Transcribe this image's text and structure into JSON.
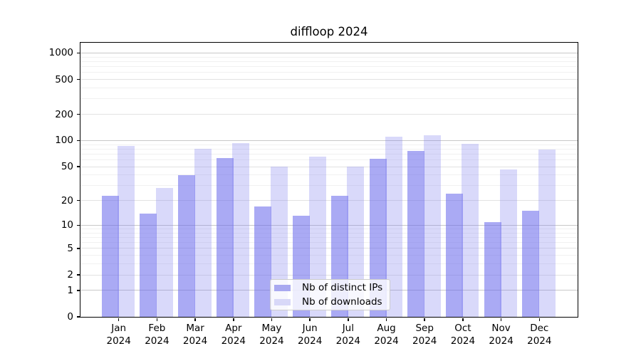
{
  "title": "diffloop 2024",
  "chart_data": {
    "type": "bar",
    "title": "diffloop 2024",
    "xlabel": "",
    "ylabel": "",
    "yscale": "log1p",
    "ylim": [
      0,
      1309
    ],
    "grid": true,
    "legend_position": "lower center",
    "categories": [
      "Jan 2024",
      "Feb 2024",
      "Mar 2024",
      "Apr 2024",
      "May 2024",
      "Jun 2024",
      "Jul 2024",
      "Aug 2024",
      "Sep 2024",
      "Oct 2024",
      "Nov 2024",
      "Dec 2024"
    ],
    "y_ticks": [
      1000,
      500,
      200,
      100,
      50,
      20,
      10,
      5,
      2,
      1,
      0
    ],
    "y_gridlines": {
      "major": [
        1,
        10,
        100,
        1000
      ],
      "mid": [
        2,
        5,
        20,
        50,
        200,
        500
      ],
      "minor": [
        3,
        4,
        6,
        7,
        8,
        9,
        30,
        40,
        60,
        70,
        80,
        90,
        300,
        400,
        600,
        700,
        800,
        900
      ]
    },
    "series": [
      {
        "name": "Nb of distinct IPs",
        "values": [
          23,
          14,
          40,
          63,
          17,
          13,
          23,
          62,
          76,
          24,
          11,
          15
        ],
        "fill": "rgba(105,105,235,0.57)",
        "swatch": "#a9a9f0"
      },
      {
        "name": "Nb of downloads",
        "values": [
          86,
          28,
          81,
          93,
          50,
          65,
          50,
          111,
          116,
          92,
          46,
          79
        ],
        "fill": "rgba(130,130,240,0.30)",
        "swatch": "#d8d8f8"
      }
    ]
  },
  "colors": {
    "background": "#ffffff",
    "spine": "#000000",
    "grid_major": "#c8c8c8",
    "grid_mid": "#e2e2e2",
    "grid_minor": "#f1f1f1",
    "legend_border": "#cccccc",
    "bar_ips": "#a9a9f0",
    "bar_downloads": "#d8d8f8"
  }
}
